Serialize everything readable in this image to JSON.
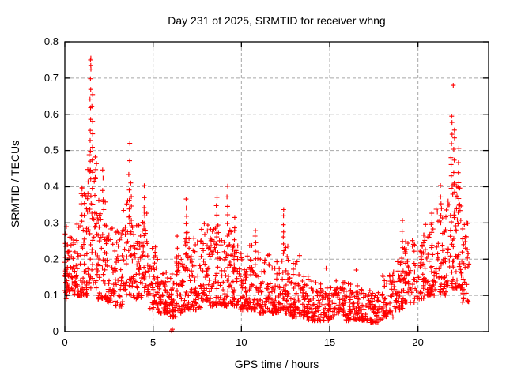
{
  "chart_data": {
    "type": "scatter",
    "title": "Day 231 of 2025, SRMTID for receiver whng",
    "xlabel": "GPS time / hours",
    "ylabel": "SRMTID / TECUs",
    "xlim": [
      0,
      24
    ],
    "ylim": [
      0,
      0.8
    ],
    "xtick_values": [
      0,
      5,
      10,
      15,
      20
    ],
    "xtick_labels": [
      "0",
      "5",
      "10",
      "15",
      "20"
    ],
    "ytick_values": [
      0,
      0.1,
      0.2,
      0.3,
      0.4,
      0.5,
      0.6,
      0.7,
      0.8
    ],
    "ytick_labels": [
      "0",
      "0.1",
      "0.2",
      "0.3",
      "0.4",
      "0.5",
      "0.6",
      "0.7",
      "0.8"
    ],
    "grid": true,
    "legend": "none",
    "marker": "plus",
    "marker_color": "#ff0000",
    "grid_color": "#a8a8a8",
    "axis_color": "#000000",
    "background_color": "#ffffff",
    "sampling_per_hour": 120,
    "bands": [
      [
        0.0,
        0.12,
        0.09,
        0.31,
        22
      ],
      [
        0.12,
        0.5,
        0.11,
        0.28,
        38
      ],
      [
        0.5,
        0.9,
        0.1,
        0.3,
        40
      ],
      [
        0.9,
        1.3,
        0.1,
        0.4,
        45
      ],
      [
        1.3,
        1.8,
        0.12,
        0.5,
        52
      ],
      [
        1.8,
        2.3,
        0.09,
        0.38,
        48
      ],
      [
        2.3,
        2.8,
        0.08,
        0.3,
        45
      ],
      [
        2.8,
        3.3,
        0.07,
        0.28,
        45
      ],
      [
        3.3,
        3.9,
        0.1,
        0.38,
        50
      ],
      [
        3.9,
        4.4,
        0.09,
        0.3,
        45
      ],
      [
        4.4,
        4.8,
        0.1,
        0.33,
        38
      ],
      [
        4.8,
        5.3,
        0.06,
        0.24,
        45
      ],
      [
        5.3,
        5.9,
        0.05,
        0.18,
        50
      ],
      [
        5.9,
        6.3,
        0.04,
        0.16,
        38
      ],
      [
        6.3,
        6.7,
        0.05,
        0.22,
        38
      ],
      [
        6.7,
        7.2,
        0.06,
        0.28,
        45
      ],
      [
        7.2,
        7.7,
        0.06,
        0.26,
        45
      ],
      [
        7.7,
        8.2,
        0.08,
        0.3,
        48
      ],
      [
        8.2,
        8.8,
        0.07,
        0.3,
        52
      ],
      [
        8.8,
        9.4,
        0.07,
        0.28,
        52
      ],
      [
        9.4,
        9.9,
        0.07,
        0.28,
        48
      ],
      [
        9.9,
        10.4,
        0.06,
        0.22,
        48
      ],
      [
        10.4,
        11.0,
        0.06,
        0.24,
        52
      ],
      [
        11.0,
        11.6,
        0.05,
        0.22,
        52
      ],
      [
        11.6,
        12.2,
        0.05,
        0.2,
        52
      ],
      [
        12.2,
        12.7,
        0.05,
        0.25,
        48
      ],
      [
        12.7,
        13.2,
        0.04,
        0.2,
        48
      ],
      [
        13.2,
        13.8,
        0.04,
        0.16,
        50
      ],
      [
        13.8,
        14.5,
        0.03,
        0.14,
        52
      ],
      [
        14.5,
        15.2,
        0.03,
        0.13,
        52
      ],
      [
        15.2,
        15.9,
        0.04,
        0.14,
        52
      ],
      [
        15.9,
        16.6,
        0.03,
        0.15,
        52
      ],
      [
        16.6,
        17.3,
        0.03,
        0.12,
        52
      ],
      [
        17.3,
        18.0,
        0.025,
        0.11,
        52
      ],
      [
        18.0,
        18.6,
        0.04,
        0.16,
        48
      ],
      [
        18.6,
        19.2,
        0.06,
        0.22,
        48
      ],
      [
        19.2,
        19.8,
        0.08,
        0.26,
        48
      ],
      [
        19.8,
        20.4,
        0.09,
        0.28,
        48
      ],
      [
        20.4,
        21.0,
        0.1,
        0.3,
        48
      ],
      [
        21.0,
        21.6,
        0.1,
        0.34,
        48
      ],
      [
        21.6,
        22.1,
        0.12,
        0.42,
        42
      ],
      [
        22.1,
        22.5,
        0.12,
        0.45,
        38
      ],
      [
        22.5,
        22.9,
        0.08,
        0.32,
        36
      ]
    ],
    "spikes": [
      [
        0.95,
        0.3,
        0.4,
        5
      ],
      [
        1.45,
        0.42,
        0.755,
        13
      ],
      [
        1.55,
        0.4,
        0.66,
        8
      ],
      [
        2.15,
        0.36,
        0.45,
        4
      ],
      [
        3.65,
        0.3,
        0.515,
        6
      ],
      [
        3.75,
        0.28,
        0.41,
        5
      ],
      [
        4.5,
        0.26,
        0.4,
        6
      ],
      [
        6.35,
        0.16,
        0.26,
        5
      ],
      [
        6.9,
        0.22,
        0.37,
        7
      ],
      [
        8.6,
        0.24,
        0.37,
        6
      ],
      [
        9.2,
        0.3,
        0.4,
        5
      ],
      [
        9.6,
        0.22,
        0.31,
        6
      ],
      [
        10.8,
        0.18,
        0.28,
        6
      ],
      [
        12.4,
        0.22,
        0.335,
        7
      ],
      [
        19.1,
        0.2,
        0.305,
        5
      ],
      [
        20.8,
        0.24,
        0.33,
        4
      ],
      [
        21.3,
        0.3,
        0.4,
        5
      ],
      [
        21.9,
        0.4,
        0.6,
        8
      ],
      [
        22.05,
        0.38,
        0.56,
        7
      ],
      [
        22.3,
        0.3,
        0.5,
        7
      ]
    ],
    "outliers": [
      [
        1.45,
        0.75
      ],
      [
        1.47,
        0.735
      ],
      [
        6.05,
        0.002
      ],
      [
        6.09,
        0.006
      ],
      [
        13.3,
        0.21
      ],
      [
        14.8,
        0.175
      ],
      [
        16.5,
        0.17
      ],
      [
        22.0,
        0.68
      ]
    ]
  }
}
